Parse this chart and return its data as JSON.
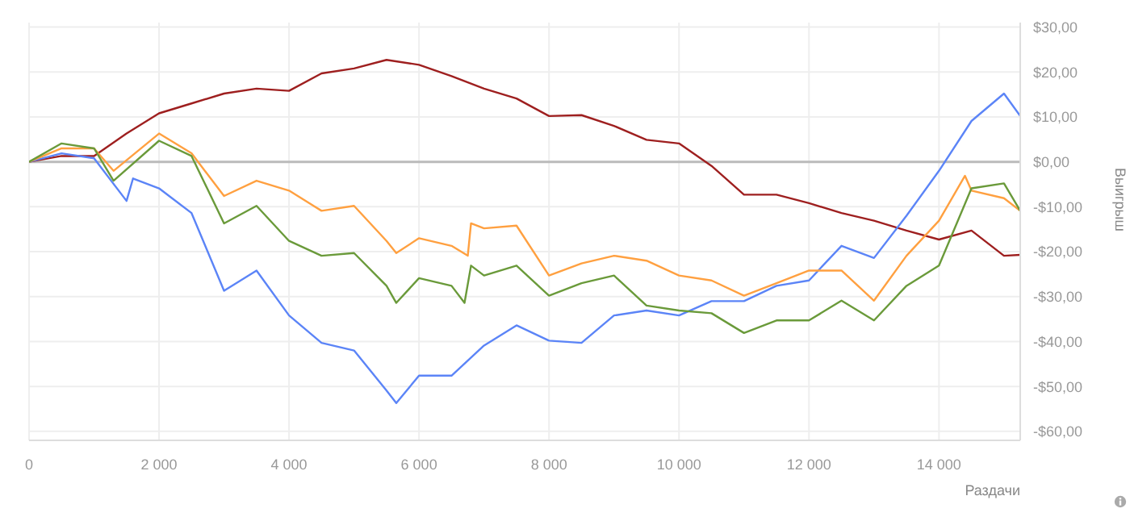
{
  "chart_data": {
    "type": "line",
    "xlabel": "Раздачи",
    "ylabel": "Выигрыш",
    "xlim": [
      0,
      15250
    ],
    "xticks": [
      0,
      {
        "value": 2000,
        "label": "2 000"
      },
      {
        "value": 4000,
        "label": "4 000"
      },
      {
        "value": 6000,
        "label": "6 000"
      },
      {
        "value": 8000,
        "label": "8 000"
      },
      {
        "value": 10000,
        "label": "10 000"
      },
      {
        "value": 12000,
        "label": "12 000"
      },
      {
        "value": 14000,
        "label": "14 000"
      }
    ],
    "ylim": [
      -62,
      31
    ],
    "yticks": [
      {
        "value": 30,
        "label": "$30,00"
      },
      {
        "value": 20,
        "label": "$20,00"
      },
      {
        "value": 10,
        "label": "$10,00"
      },
      {
        "value": 0,
        "label": "$0,00"
      },
      {
        "value": -10,
        "label": "-$10,00"
      },
      {
        "value": -20,
        "label": "-$20,00"
      },
      {
        "value": -30,
        "label": "-$30,00"
      },
      {
        "value": -40,
        "label": "-$40,00"
      },
      {
        "value": -50,
        "label": "-$50,00"
      },
      {
        "value": -60,
        "label": "-$60,00"
      }
    ],
    "grid": true,
    "marker": "none",
    "line_style": "solid",
    "ref_lines": [
      {
        "axis": "y",
        "value": 0,
        "color": "#bbbbbb"
      }
    ],
    "series": [
      {
        "color": "#9e1f1f",
        "x": [
          0,
          500,
          1000,
          1500,
          2000,
          2500,
          3000,
          3500,
          4000,
          4500,
          5000,
          5500,
          6000,
          6500,
          7000,
          7500,
          8000,
          8500,
          9000,
          9500,
          10000,
          10500,
          11000,
          11500,
          12000,
          12500,
          13000,
          13500,
          14000,
          14500,
          15000,
          15250
        ],
        "values": [
          0,
          1.3,
          1.3,
          6.3,
          10.8,
          13,
          15.2,
          16.3,
          15.8,
          19.7,
          20.8,
          22.7,
          21.6,
          19.1,
          16.3,
          14.1,
          10.2,
          10.4,
          8,
          4.9,
          4.1,
          -0.9,
          -7.3,
          -7.3,
          -9.2,
          -11.4,
          -13.1,
          -15.3,
          -17.3,
          -15.3,
          -20.9,
          -20.7
        ]
      },
      {
        "color": "#5b84f7",
        "x": [
          0,
          500,
          1000,
          1500,
          1600,
          2000,
          2500,
          3000,
          3500,
          4000,
          4500,
          5000,
          5500,
          5650,
          6000,
          6500,
          7000,
          7500,
          8000,
          8500,
          9000,
          9500,
          10000,
          10500,
          11000,
          11500,
          12000,
          12500,
          13000,
          13500,
          14000,
          14500,
          15000,
          15250
        ],
        "values": [
          0,
          1.9,
          0.8,
          -8.7,
          -3.7,
          -5.9,
          -11.4,
          -28.7,
          -24.2,
          -34.2,
          -40.3,
          -42,
          -50.9,
          -53.7,
          -47.6,
          -47.6,
          -40.9,
          -36.4,
          -39.8,
          -40.3,
          -34.2,
          -33.1,
          -34.2,
          -31,
          -31,
          -27.6,
          -26.4,
          -18.7,
          -21.4,
          -12,
          -2,
          9.1,
          15.2,
          10.2
        ]
      },
      {
        "color": "#ffa040",
        "x": [
          0,
          500,
          1000,
          1300,
          2000,
          2500,
          3000,
          3500,
          4000,
          4500,
          5000,
          5500,
          5650,
          6000,
          6500,
          6750,
          6800,
          7000,
          7500,
          8000,
          8500,
          9000,
          9500,
          10000,
          10500,
          11000,
          11500,
          12000,
          12500,
          13000,
          13500,
          14000,
          14400,
          14500,
          15000,
          15250
        ],
        "values": [
          0,
          3,
          3,
          -2,
          6.3,
          1.9,
          -7.6,
          -4.2,
          -6.4,
          -10.9,
          -9.8,
          -17.6,
          -20.3,
          -17,
          -18.7,
          -20.9,
          -13.7,
          -14.8,
          -14.2,
          -25.3,
          -22.6,
          -20.9,
          -22,
          -25.3,
          -26.4,
          -29.8,
          -27,
          -24.2,
          -24.2,
          -30.9,
          -20.9,
          -13.1,
          -3.1,
          -6.4,
          -8.1,
          -10.9
        ]
      },
      {
        "color": "#6a9a3a",
        "x": [
          0,
          500,
          1000,
          1300,
          2000,
          2500,
          3000,
          3500,
          4000,
          4500,
          5000,
          5500,
          5650,
          6000,
          6500,
          6700,
          6800,
          7000,
          7500,
          8000,
          8500,
          9000,
          9500,
          10000,
          10500,
          11000,
          11500,
          12000,
          12500,
          13000,
          13500,
          14000,
          14500,
          15000,
          15250
        ],
        "values": [
          0,
          4.1,
          3,
          -4.2,
          4.7,
          1.3,
          -13.7,
          -9.8,
          -17.6,
          -20.9,
          -20.3,
          -27.6,
          -31.4,
          -25.9,
          -27.6,
          -31.4,
          -23.1,
          -25.3,
          -23.1,
          -29.8,
          -27,
          -25.3,
          -32,
          -33.1,
          -33.7,
          -38.1,
          -35.3,
          -35.3,
          -30.9,
          -35.3,
          -27.6,
          -23.1,
          -5.9,
          -4.8,
          -10.9
        ]
      }
    ]
  }
}
